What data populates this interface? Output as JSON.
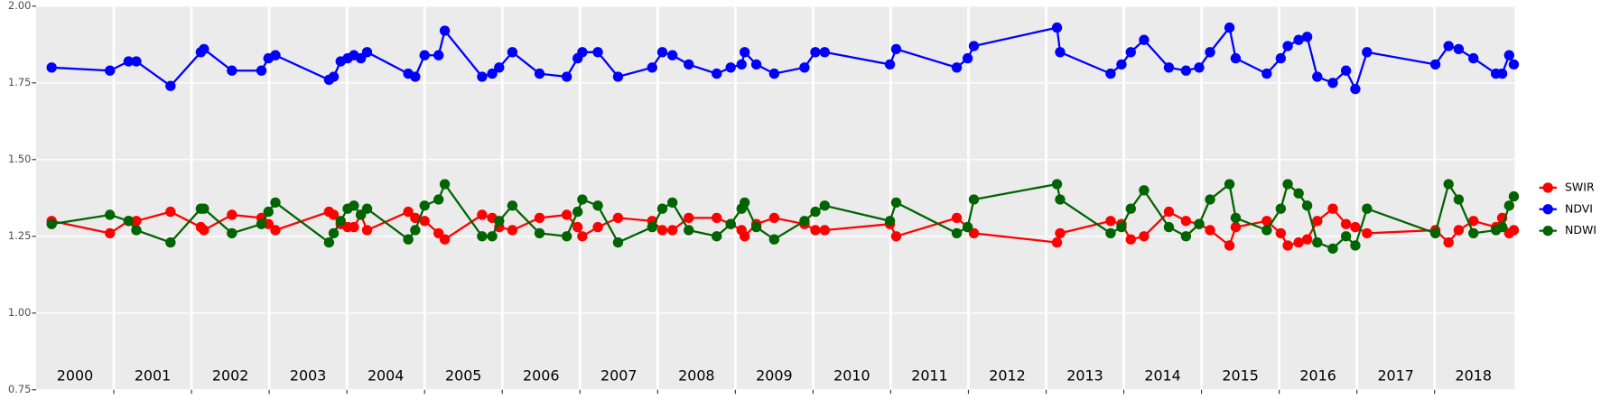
{
  "chart_data": {
    "type": "line",
    "x": [
      2000.2,
      2000.95,
      2001.19,
      2001.29,
      2001.73,
      2002.12,
      2002.16,
      2002.52,
      2002.9,
      2002.99,
      2003.08,
      2003.77,
      2003.83,
      2003.92,
      2004.01,
      2004.09,
      2004.18,
      2004.26,
      2004.79,
      2004.88,
      2005.0,
      2005.18,
      2005.26,
      2005.74,
      2005.87,
      2005.96,
      2006.13,
      2006.48,
      2006.83,
      2006.97,
      2007.03,
      2007.23,
      2007.49,
      2007.93,
      2008.06,
      2008.19,
      2008.4,
      2008.76,
      2008.94,
      2009.08,
      2009.12,
      2009.27,
      2009.5,
      2009.89,
      2010.03,
      2010.15,
      2010.99,
      2011.07,
      2011.85,
      2011.99,
      2012.07,
      2013.14,
      2013.18,
      2013.83,
      2013.97,
      2014.09,
      2014.26,
      2014.58,
      2014.8,
      2014.97,
      2015.11,
      2015.36,
      2015.44,
      2015.84,
      2016.02,
      2016.11,
      2016.25,
      2016.36,
      2016.49,
      2016.69,
      2016.86,
      2016.98,
      2017.13,
      2018.01,
      2018.18,
      2018.31,
      2018.5,
      2018.79,
      2018.87,
      2018.96,
      2019.02
    ],
    "series": [
      {
        "name": "SWIR",
        "color": "#ff0000",
        "values": [
          1.3,
          1.26,
          1.3,
          1.3,
          1.33,
          1.28,
          1.27,
          1.32,
          1.31,
          1.29,
          1.27,
          1.33,
          1.32,
          1.29,
          1.28,
          1.28,
          1.32,
          1.27,
          1.33,
          1.31,
          1.3,
          1.26,
          1.24,
          1.32,
          1.31,
          1.28,
          1.27,
          1.31,
          1.32,
          1.28,
          1.25,
          1.28,
          1.31,
          1.3,
          1.27,
          1.27,
          1.31,
          1.31,
          1.29,
          1.27,
          1.25,
          1.29,
          1.31,
          1.29,
          1.27,
          1.27,
          1.29,
          1.25,
          1.31,
          1.28,
          1.26,
          1.23,
          1.26,
          1.3,
          1.29,
          1.24,
          1.25,
          1.33,
          1.3,
          1.29,
          1.27,
          1.22,
          1.28,
          1.3,
          1.26,
          1.22,
          1.23,
          1.24,
          1.3,
          1.34,
          1.29,
          1.28,
          1.26,
          1.27,
          1.23,
          1.27,
          1.3,
          1.28,
          1.31,
          1.26,
          1.27
        ]
      },
      {
        "name": "NDVI",
        "color": "#0000ff",
        "values": [
          1.8,
          1.79,
          1.82,
          1.82,
          1.74,
          1.85,
          1.86,
          1.79,
          1.79,
          1.83,
          1.84,
          1.76,
          1.77,
          1.82,
          1.83,
          1.84,
          1.83,
          1.85,
          1.78,
          1.77,
          1.84,
          1.84,
          1.92,
          1.77,
          1.78,
          1.8,
          1.85,
          1.78,
          1.77,
          1.83,
          1.85,
          1.85,
          1.77,
          1.8,
          1.85,
          1.84,
          1.81,
          1.78,
          1.8,
          1.81,
          1.85,
          1.81,
          1.78,
          1.8,
          1.85,
          1.85,
          1.81,
          1.86,
          1.8,
          1.83,
          1.87,
          1.93,
          1.85,
          1.78,
          1.81,
          1.85,
          1.89,
          1.8,
          1.79,
          1.8,
          1.85,
          1.93,
          1.83,
          1.78,
          1.83,
          1.87,
          1.89,
          1.9,
          1.77,
          1.75,
          1.79,
          1.73,
          1.85,
          1.81,
          1.87,
          1.86,
          1.83,
          1.78,
          1.78,
          1.84,
          1.81
        ]
      },
      {
        "name": "NDWI",
        "color": "#006400",
        "values": [
          1.29,
          1.32,
          1.3,
          1.27,
          1.23,
          1.34,
          1.34,
          1.26,
          1.29,
          1.33,
          1.36,
          1.23,
          1.26,
          1.3,
          1.34,
          1.35,
          1.32,
          1.34,
          1.24,
          1.27,
          1.35,
          1.37,
          1.42,
          1.25,
          1.25,
          1.3,
          1.35,
          1.26,
          1.25,
          1.33,
          1.37,
          1.35,
          1.23,
          1.28,
          1.34,
          1.36,
          1.27,
          1.25,
          1.29,
          1.34,
          1.36,
          1.28,
          1.24,
          1.3,
          1.33,
          1.35,
          1.3,
          1.36,
          1.26,
          1.28,
          1.37,
          1.42,
          1.37,
          1.26,
          1.28,
          1.34,
          1.4,
          1.28,
          1.25,
          1.29,
          1.37,
          1.42,
          1.31,
          1.27,
          1.34,
          1.42,
          1.39,
          1.35,
          1.23,
          1.21,
          1.25,
          1.22,
          1.34,
          1.26,
          1.42,
          1.37,
          1.26,
          1.27,
          1.28,
          1.35,
          1.38
        ]
      }
    ],
    "xlim": [
      2000,
      2019.03
    ],
    "xticks": [
      2001,
      2002,
      2003,
      2004,
      2005,
      2006,
      2007,
      2008,
      2009,
      2010,
      2011,
      2012,
      2013,
      2014,
      2015,
      2016,
      2017,
      2018
    ],
    "year_labels": [
      2000,
      2001,
      2002,
      2003,
      2004,
      2005,
      2006,
      2007,
      2008,
      2009,
      2010,
      2011,
      2012,
      2013,
      2014,
      2015,
      2016,
      2017,
      2018
    ],
    "ylim": [
      0.75,
      2.0
    ],
    "yticks": [
      {
        "value": 0.75,
        "label": "0.75"
      },
      {
        "value": 1.0,
        "label": "1.00"
      },
      {
        "value": 1.25,
        "label": "1.25"
      },
      {
        "value": 1.5,
        "label": "1.50"
      },
      {
        "value": 1.75,
        "label": "1.75"
      },
      {
        "value": 2.0,
        "label": "2.00"
      }
    ],
    "grid": true,
    "legend": "right"
  }
}
